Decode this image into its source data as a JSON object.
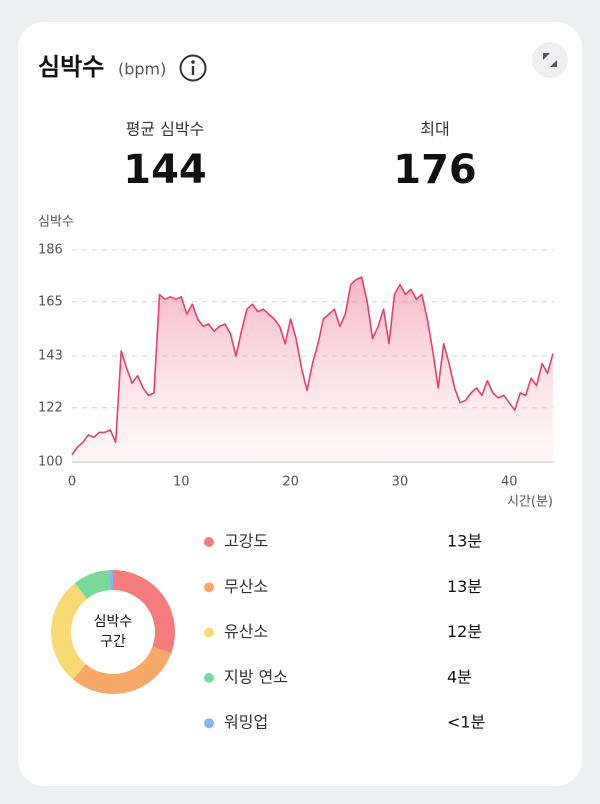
{
  "header": {
    "title": "심박수",
    "unit": "(bpm)"
  },
  "stats": [
    {
      "label": "평균 심박수",
      "value": "144"
    },
    {
      "label": "최대",
      "value": "176"
    }
  ],
  "chart_data": {
    "type": "line",
    "y_label": "심박수",
    "x_label": "시간(분)",
    "color": "#e0436a",
    "xlim": [
      0,
      44
    ],
    "ylim": [
      100,
      186
    ],
    "xticks": [
      0,
      10,
      20,
      30,
      40
    ],
    "yticks": [
      100,
      122,
      143,
      165,
      186
    ],
    "grid": true,
    "x": [
      0,
      0.5,
      1,
      1.5,
      2,
      2.5,
      3,
      3.5,
      4,
      4.5,
      5,
      5.5,
      6,
      6.5,
      7,
      7.5,
      8,
      8.5,
      9,
      9.5,
      10,
      10.5,
      11,
      11.5,
      12,
      12.5,
      13,
      13.5,
      14,
      14.5,
      15,
      15.5,
      16,
      16.5,
      17,
      17.5,
      18,
      18.5,
      19,
      19.5,
      20,
      20.5,
      21,
      21.5,
      22,
      22.5,
      23,
      23.5,
      24,
      24.5,
      25,
      25.5,
      26,
      26.5,
      27,
      27.5,
      28,
      28.5,
      29,
      29.5,
      30,
      30.5,
      31,
      31.5,
      32,
      32.5,
      33,
      33.5,
      34,
      34.5,
      35,
      35.5,
      36,
      36.5,
      37,
      37.5,
      38,
      38.5,
      39,
      39.5,
      40,
      40.5,
      41,
      41.5,
      42,
      42.5,
      43,
      43.5,
      44
    ],
    "values": [
      103,
      106,
      108,
      111,
      110,
      112,
      112,
      113,
      108,
      145,
      138,
      132,
      135,
      130,
      127,
      128,
      168,
      166,
      167,
      166,
      167,
      160,
      164,
      158,
      155,
      156,
      153,
      155,
      156,
      152,
      143,
      153,
      162,
      164,
      161,
      162,
      160,
      158,
      155,
      148,
      158,
      150,
      138,
      129,
      140,
      148,
      158,
      160,
      162,
      155,
      160,
      172,
      174,
      175,
      165,
      150,
      155,
      162,
      148,
      168,
      172,
      168,
      170,
      166,
      168,
      158,
      145,
      130,
      148,
      140,
      130,
      124,
      125,
      128,
      130,
      127,
      133,
      128,
      126,
      127,
      124,
      121,
      128,
      127,
      134,
      131,
      140,
      136,
      144
    ]
  },
  "zones": {
    "donut_label": [
      "심박수",
      "구간"
    ],
    "items": [
      {
        "name": "고강도",
        "value": 13,
        "value_label": "13분",
        "color": "#f47c7c"
      },
      {
        "name": "무산소",
        "value": 13,
        "value_label": "13분",
        "color": "#f6a868"
      },
      {
        "name": "유산소",
        "value": 12,
        "value_label": "12분",
        "color": "#f8da74"
      },
      {
        "name": "지방 연소",
        "value": 4,
        "value_label": "4분",
        "color": "#7ad99a"
      },
      {
        "name": "워밍업",
        "value": 0.5,
        "value_label": "<1분",
        "color": "#86b6f0"
      }
    ]
  }
}
